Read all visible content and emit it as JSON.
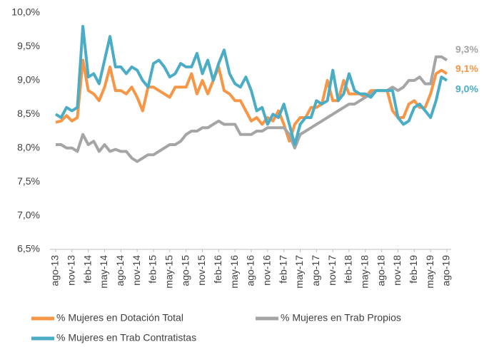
{
  "chart_data": {
    "type": "line",
    "categories": [
      "ago-13",
      null,
      null,
      "nov-13",
      null,
      null,
      "feb-14",
      null,
      null,
      "may-14",
      null,
      null,
      "ago-14",
      null,
      null,
      "nov-14",
      null,
      null,
      "feb-15",
      null,
      null,
      "may-15",
      null,
      null,
      "ago-15",
      null,
      null,
      "nov-15",
      null,
      null,
      "feb-16",
      null,
      null,
      "may-16",
      null,
      null,
      "ago-16",
      null,
      null,
      "nov-16",
      null,
      null,
      "feb-17",
      null,
      null,
      "may-17",
      null,
      null,
      "ago-17",
      null,
      null,
      "nov-17",
      null,
      null,
      "feb-18",
      null,
      null,
      "may-18",
      null,
      null,
      "ago-18",
      null,
      null,
      "nov-18",
      null,
      null,
      "feb-19",
      null,
      null,
      "may-19",
      null,
      null,
      "ago-19"
    ],
    "series": [
      {
        "name": "% Mujeres en Dotación Total",
        "color": "#f79646",
        "values": [
          8.38,
          8.4,
          8.48,
          8.4,
          8.45,
          9.3,
          8.85,
          8.8,
          8.7,
          8.9,
          9.2,
          8.85,
          8.85,
          8.8,
          8.9,
          8.75,
          8.55,
          8.9,
          8.9,
          8.85,
          8.8,
          8.75,
          8.9,
          8.9,
          8.9,
          9.1,
          8.8,
          9.0,
          8.8,
          9.0,
          9.2,
          8.85,
          8.8,
          8.7,
          8.7,
          8.55,
          8.4,
          8.45,
          8.35,
          8.45,
          8.4,
          8.55,
          8.35,
          8.1,
          8.35,
          8.45,
          8.45,
          8.6,
          8.6,
          8.65,
          9.0,
          8.7,
          8.7,
          9.0,
          8.8,
          8.8,
          8.8,
          8.75,
          8.85,
          8.85,
          8.85,
          8.85,
          8.55,
          8.45,
          8.45,
          8.65,
          8.7,
          8.6,
          8.6,
          8.8,
          9.1,
          9.15,
          9.1
        ],
        "value_labels": [
          null,
          null,
          null,
          null,
          null,
          null,
          null,
          null,
          null,
          null,
          null,
          null,
          null,
          null,
          null,
          null,
          null,
          null,
          null,
          null,
          null,
          null,
          null,
          null,
          null,
          null,
          null,
          null,
          null,
          null,
          null,
          null,
          null,
          null,
          null,
          null,
          null,
          null,
          null,
          null,
          null,
          null,
          null,
          null,
          null,
          null,
          null,
          null,
          null,
          null,
          null,
          null,
          null,
          null,
          null,
          null,
          null,
          null,
          null,
          null,
          null,
          null,
          null,
          null,
          null,
          null,
          null,
          null,
          null,
          null,
          null,
          null,
          "9,1%"
        ]
      },
      {
        "name": "% Mujeres en Trab Propios",
        "color": "#a5a5a5",
        "values": [
          8.05,
          8.05,
          8.0,
          8.0,
          7.95,
          8.2,
          8.05,
          8.1,
          7.95,
          8.05,
          7.95,
          7.98,
          7.95,
          7.95,
          7.85,
          7.8,
          7.85,
          7.9,
          7.9,
          7.95,
          8.0,
          8.05,
          8.05,
          8.1,
          8.2,
          8.25,
          8.25,
          8.3,
          8.3,
          8.35,
          8.4,
          8.35,
          8.35,
          8.35,
          8.2,
          8.2,
          8.2,
          8.25,
          8.25,
          8.3,
          8.3,
          8.3,
          8.3,
          8.2,
          8.0,
          8.2,
          8.25,
          8.3,
          8.35,
          8.4,
          8.45,
          8.5,
          8.55,
          8.6,
          8.65,
          8.65,
          8.7,
          8.75,
          8.8,
          8.85,
          8.85,
          8.85,
          8.9,
          8.85,
          8.9,
          9.0,
          9.0,
          9.05,
          8.95,
          8.95,
          9.35,
          9.35,
          9.3
        ],
        "value_labels": [
          null,
          null,
          null,
          null,
          null,
          null,
          null,
          null,
          null,
          null,
          null,
          null,
          null,
          null,
          null,
          null,
          null,
          null,
          null,
          null,
          null,
          null,
          null,
          null,
          null,
          null,
          null,
          null,
          null,
          null,
          null,
          null,
          null,
          null,
          null,
          null,
          null,
          null,
          null,
          null,
          null,
          null,
          null,
          null,
          null,
          null,
          null,
          null,
          null,
          null,
          null,
          null,
          null,
          null,
          null,
          null,
          null,
          null,
          null,
          null,
          null,
          null,
          null,
          null,
          null,
          null,
          null,
          null,
          null,
          null,
          null,
          null,
          "9,3%"
        ]
      },
      {
        "name": "% Mujeres en Trab Contratistas",
        "color": "#4bacc6",
        "values": [
          8.5,
          8.45,
          8.6,
          8.55,
          8.6,
          9.8,
          9.05,
          9.1,
          8.95,
          9.3,
          9.65,
          9.2,
          9.2,
          9.1,
          9.2,
          9.15,
          9.0,
          8.9,
          9.25,
          9.3,
          9.2,
          9.05,
          9.1,
          9.25,
          9.2,
          9.2,
          9.4,
          9.1,
          9.3,
          9.0,
          9.25,
          9.45,
          9.1,
          8.95,
          8.9,
          9.05,
          8.85,
          8.55,
          8.6,
          8.35,
          8.5,
          8.45,
          8.65,
          8.35,
          8.05,
          8.35,
          8.45,
          8.45,
          8.7,
          8.65,
          8.7,
          9.15,
          8.7,
          8.8,
          9.1,
          8.85,
          8.8,
          8.8,
          8.75,
          8.85,
          8.85,
          8.85,
          8.85,
          8.45,
          8.35,
          8.4,
          8.6,
          8.65,
          8.55,
          8.45,
          8.7,
          9.05,
          9.0
        ],
        "value_labels": [
          null,
          null,
          null,
          null,
          null,
          null,
          null,
          null,
          null,
          null,
          null,
          null,
          null,
          null,
          null,
          null,
          null,
          null,
          null,
          null,
          null,
          null,
          null,
          null,
          null,
          null,
          null,
          null,
          null,
          null,
          null,
          null,
          null,
          null,
          null,
          null,
          null,
          null,
          null,
          null,
          null,
          null,
          null,
          null,
          null,
          null,
          null,
          null,
          null,
          null,
          null,
          null,
          null,
          null,
          null,
          null,
          null,
          null,
          null,
          null,
          null,
          null,
          null,
          null,
          null,
          null,
          null,
          null,
          null,
          null,
          null,
          null,
          "9,0%"
        ]
      }
    ],
    "ylim": [
      6.5,
      10.0
    ],
    "yticks": [
      {
        "value": 6.5,
        "label": "6,5%"
      },
      {
        "value": 7.0,
        "label": "7,0%"
      },
      {
        "value": 7.5,
        "label": "7,5%"
      },
      {
        "value": 8.0,
        "label": "8,0%"
      },
      {
        "value": 8.5,
        "label": "8,5%"
      },
      {
        "value": 9.0,
        "label": "9,0%"
      },
      {
        "value": 9.5,
        "label": "9,5%"
      },
      {
        "value": 10.0,
        "label": "10,0%"
      }
    ],
    "grid": false
  }
}
